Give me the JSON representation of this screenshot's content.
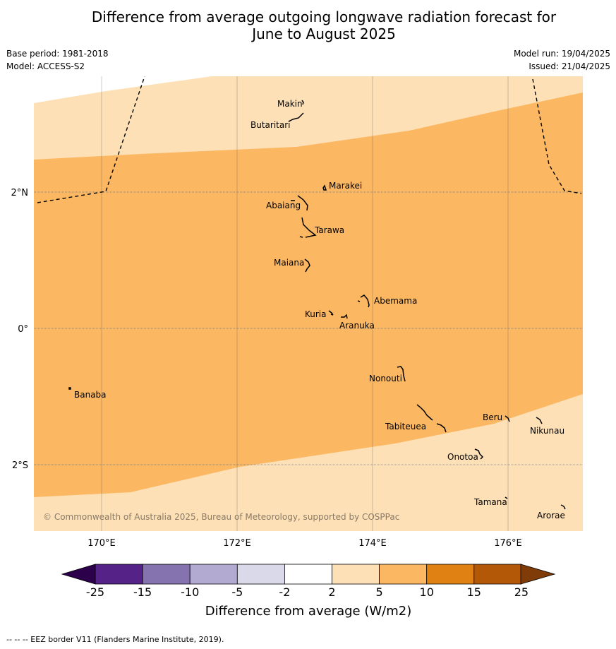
{
  "title_line1": "Difference from average outgoing longwave radiation forecast for",
  "title_line2": "June to August 2025",
  "meta": {
    "base_period": "Base period: 1981-2018",
    "model": "Model: ACCESS-S2",
    "model_run": "Model run: 19/04/2025",
    "issued": "Issued: 21/04/2025"
  },
  "map": {
    "lon_range": [
      169,
      177.1
    ],
    "lat_range": [
      -3,
      3.7
    ],
    "lon_ticks": [
      {
        "value": 170,
        "label": "170°E"
      },
      {
        "value": 172,
        "label": "172°E"
      },
      {
        "value": 174,
        "label": "174°E"
      },
      {
        "value": 176,
        "label": "176°E"
      }
    ],
    "lat_ticks": [
      {
        "value": 2,
        "label": "2°N"
      },
      {
        "value": 0,
        "label": "0°"
      },
      {
        "value": -2,
        "label": "2°S"
      }
    ],
    "colors": {
      "band_2_5": "#fde0b6",
      "band_5_10": "#fbb762",
      "gridline": "#555555"
    },
    "islands": [
      {
        "name": "Makin",
        "lon": 172.95,
        "lat": 3.3
      },
      {
        "name": "Butaritari",
        "lon": 172.8,
        "lat": 3.05
      },
      {
        "name": "Marakei",
        "lon": 173.3,
        "lat": 2.0
      },
      {
        "name": "Abaiang",
        "lon": 173.0,
        "lat": 1.8
      },
      {
        "name": "Tarawa",
        "lon": 173.1,
        "lat": 1.4
      },
      {
        "name": "Maiana",
        "lon": 173.0,
        "lat": 0.95
      },
      {
        "name": "Abemama",
        "lon": 173.9,
        "lat": 0.4
      },
      {
        "name": "Kuria",
        "lon": 173.4,
        "lat": 0.22
      },
      {
        "name": "Aranuka",
        "lon": 173.6,
        "lat": 0.17
      },
      {
        "name": "Nonouti",
        "lon": 174.4,
        "lat": -0.65
      },
      {
        "name": "Banaba",
        "lon": 169.55,
        "lat": -0.87
      },
      {
        "name": "Beru",
        "lon": 176.0,
        "lat": -1.33
      },
      {
        "name": "Nikunau",
        "lon": 176.45,
        "lat": -1.38
      },
      {
        "name": "Tabiteuea",
        "lon": 174.85,
        "lat": -1.35
      },
      {
        "name": "Onotoa",
        "lon": 175.55,
        "lat": -1.82
      },
      {
        "name": "Tamana",
        "lon": 175.98,
        "lat": -2.5
      },
      {
        "name": "Arorae",
        "lon": 176.82,
        "lat": -2.65
      }
    ],
    "copyright": "© Commonwealth of Australia 2025, Bureau of Meteorology, supported by COSPPac"
  },
  "colorbar": {
    "ticks": [
      "-25",
      "-15",
      "-10",
      "-5",
      "-2",
      "2",
      "5",
      "10",
      "15",
      "25"
    ],
    "colors": [
      "#552288",
      "#8473ae",
      "#b2aad1",
      "#d9d9ea",
      "#ffffff",
      "#fde0b6",
      "#fbb762",
      "#e08213",
      "#b35807"
    ],
    "under_color": "#2d004b",
    "over_color": "#7f3b08",
    "label": "Difference from average (W/m2)"
  },
  "footer": "--  --  -- EEZ border V11 (Flanders Marine Institute, 2019)."
}
